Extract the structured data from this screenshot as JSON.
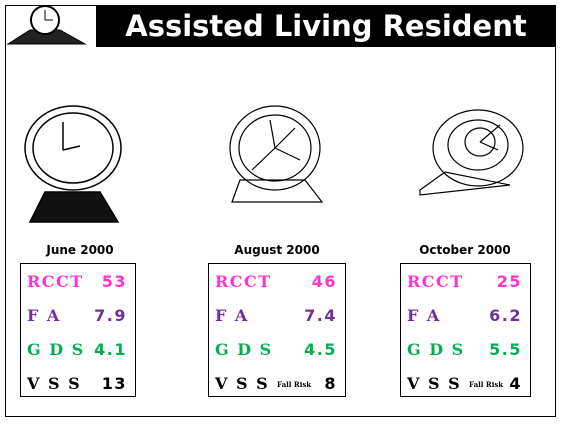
{
  "header": {
    "title": "Assisted Living Resident"
  },
  "columns": [
    {
      "date": "June 2000",
      "scores": [
        {
          "name": "RCCT",
          "value": 53
        },
        {
          "name": "F A",
          "value": 7.9
        },
        {
          "name": "G D S",
          "value": 4.1
        },
        {
          "name": "V S S",
          "value": 13
        }
      ]
    },
    {
      "date": "August 2000",
      "scores": [
        {
          "name": "RCCT",
          "value": 46
        },
        {
          "name": "F A",
          "value": 7.4
        },
        {
          "name": "G D S",
          "value": 4.5
        },
        {
          "name": "V S S",
          "value": 8,
          "note": "Fall Risk"
        }
      ]
    },
    {
      "date": "October 2000",
      "scores": [
        {
          "name": "RCCT",
          "value": 25
        },
        {
          "name": "F A",
          "value": 6.2
        },
        {
          "name": "G D S",
          "value": 5.5
        },
        {
          "name": "V S S",
          "value": 4,
          "note": "Fall Risk"
        }
      ]
    }
  ]
}
